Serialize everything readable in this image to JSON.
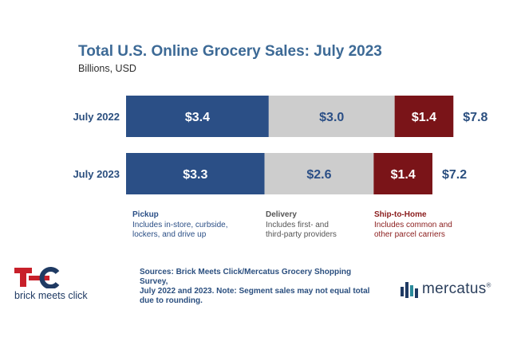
{
  "chart_data": {
    "type": "bar",
    "orientation": "horizontal",
    "stacked": true,
    "title": "Total U.S. Online Grocery Sales: July 2023",
    "subtitle": "Billions, USD",
    "categories": [
      "July 2022",
      "July 2023"
    ],
    "series": [
      {
        "name": "Pickup",
        "values": [
          3.4,
          3.3
        ],
        "labels": [
          "$3.4",
          "$3.3"
        ],
        "color": "#2b4f86",
        "label_color": "#ffffff"
      },
      {
        "name": "Delivery",
        "values": [
          3.0,
          2.6
        ],
        "labels": [
          "$3.0",
          "$2.6"
        ],
        "color": "#cdcdcd",
        "label_color": "#2b4f86"
      },
      {
        "name": "Ship-to-Home",
        "values": [
          1.4,
          1.4
        ],
        "labels": [
          "$1.4",
          "$1.4"
        ],
        "color": "#7a1418",
        "label_color": "#ffffff"
      }
    ],
    "totals": [
      7.8,
      7.2
    ],
    "total_labels": [
      "$7.8",
      "$7.2"
    ],
    "grid": false
  },
  "legend": [
    {
      "title": "Pickup",
      "desc": "Includes in-store, curbside,\nlockers, and drive up",
      "title_color": "#2b4f86",
      "desc_color": "#2b4f86"
    },
    {
      "title": "Delivery",
      "desc": "Includes first- and\nthird-party providers",
      "title_color": "#555555",
      "desc_color": "#555555"
    },
    {
      "title": "Ship-to-Home",
      "desc": "Includes common and\nother parcel carriers",
      "title_color": "#8a1c1c",
      "desc_color": "#8a1c1c"
    }
  ],
  "sources": "Sources: Brick Meets Click/Mercatus Grocery Shopping Survey,\nJuly 2022 and 2023. Note: Segment sales may not equal total\ndue to rounding.",
  "logos": {
    "brick_meets_click": "brick meets click",
    "mercatus": "mercatus"
  },
  "colors": {
    "title": "#3d6a96",
    "brand_red": "#c8202a",
    "brand_blue": "#1f3a63"
  }
}
